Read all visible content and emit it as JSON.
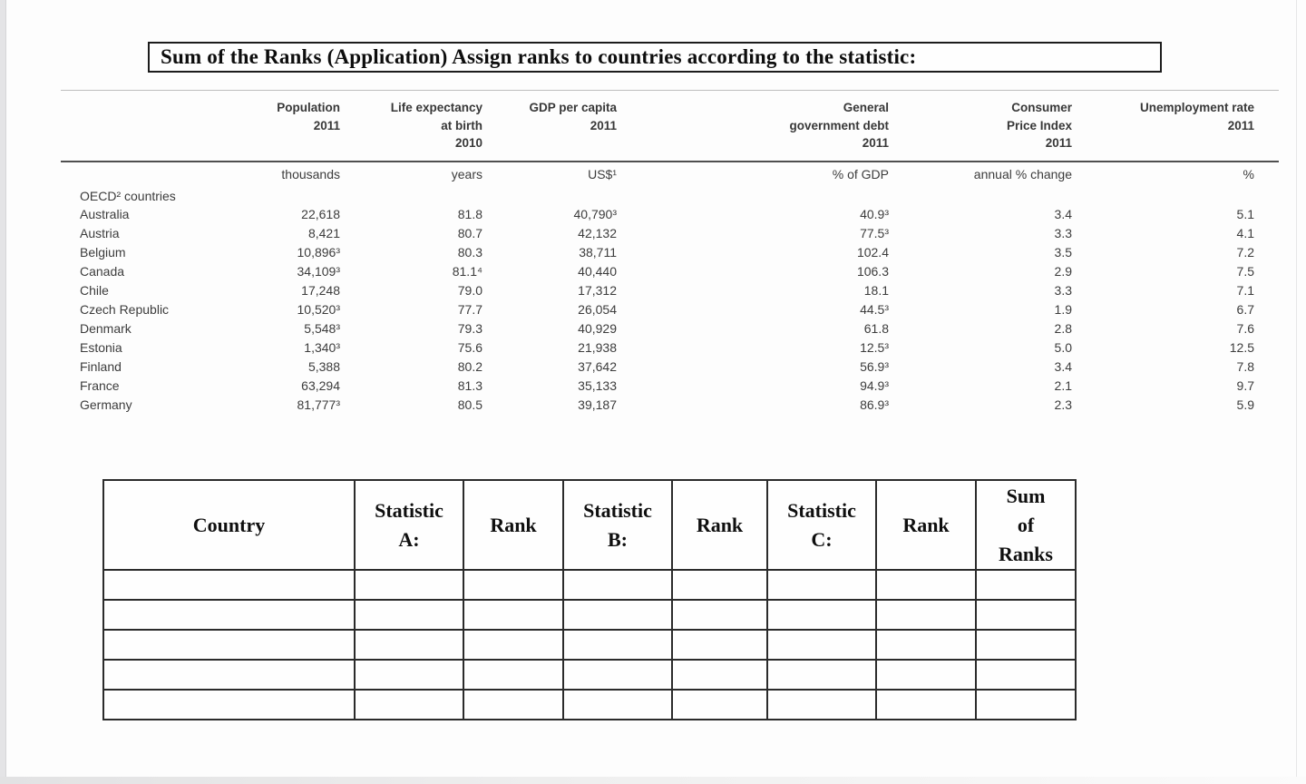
{
  "page": {
    "title": "Sum of the Ranks (Application) Assign ranks to countries according to the statistic:"
  },
  "stats_table": {
    "group_label": "OECD² countries",
    "columns": [
      {
        "label": "Population\n2011",
        "unit": "thousands"
      },
      {
        "label": "Life expectancy\nat birth\n2010",
        "unit": "years"
      },
      {
        "label": "GDP per capita\n2011",
        "unit": "US$¹"
      },
      {
        "label": "General\ngovernment debt\n2011",
        "unit": "% of GDP"
      },
      {
        "label": "Consumer\nPrice Index\n2011",
        "unit": "annual % change"
      },
      {
        "label": "Unemployment rate\n2011",
        "unit": "%"
      }
    ],
    "rows": [
      {
        "country": "Australia",
        "values": [
          "22,618",
          "81.8",
          "40,790³",
          "40.9³",
          "3.4",
          "5.1"
        ]
      },
      {
        "country": "Austria",
        "values": [
          "8,421",
          "80.7",
          "42,132",
          "77.5³",
          "3.3",
          "4.1"
        ]
      },
      {
        "country": "Belgium",
        "values": [
          "10,896³",
          "80.3",
          "38,711",
          "102.4",
          "3.5",
          "7.2"
        ]
      },
      {
        "country": "Canada",
        "values": [
          "34,109³",
          "81.1⁴",
          "40,440",
          "106.3",
          "2.9",
          "7.5"
        ]
      },
      {
        "country": "Chile",
        "values": [
          "17,248",
          "79.0",
          "17,312",
          "18.1",
          "3.3",
          "7.1"
        ]
      },
      {
        "country": "Czech Republic",
        "values": [
          "10,520³",
          "77.7",
          "26,054",
          "44.5³",
          "1.9",
          "6.7"
        ]
      },
      {
        "country": "Denmark",
        "values": [
          "5,548³",
          "79.3",
          "40,929",
          "61.8",
          "2.8",
          "7.6"
        ]
      },
      {
        "country": "Estonia",
        "values": [
          "1,340³",
          "75.6",
          "21,938",
          "12.5³",
          "5.0",
          "12.5"
        ]
      },
      {
        "country": "Finland",
        "values": [
          "5,388",
          "80.2",
          "37,642",
          "56.9³",
          "3.4",
          "7.8"
        ]
      },
      {
        "country": "France",
        "values": [
          "63,294",
          "81.3",
          "35,133",
          "94.9³",
          "2.1",
          "9.7"
        ]
      },
      {
        "country": "Germany",
        "values": [
          "81,777³",
          "80.5",
          "39,187",
          "86.9³",
          "2.3",
          "5.9"
        ]
      }
    ]
  },
  "worksheet_table": {
    "headers": [
      "Country",
      "Statistic\nA:",
      "Rank",
      "Statistic\nB:",
      "Rank",
      "Statistic\nC:",
      "Rank",
      "Sum\nof\nRanks"
    ],
    "empty_rows": 5,
    "empty_cols": 8
  }
}
